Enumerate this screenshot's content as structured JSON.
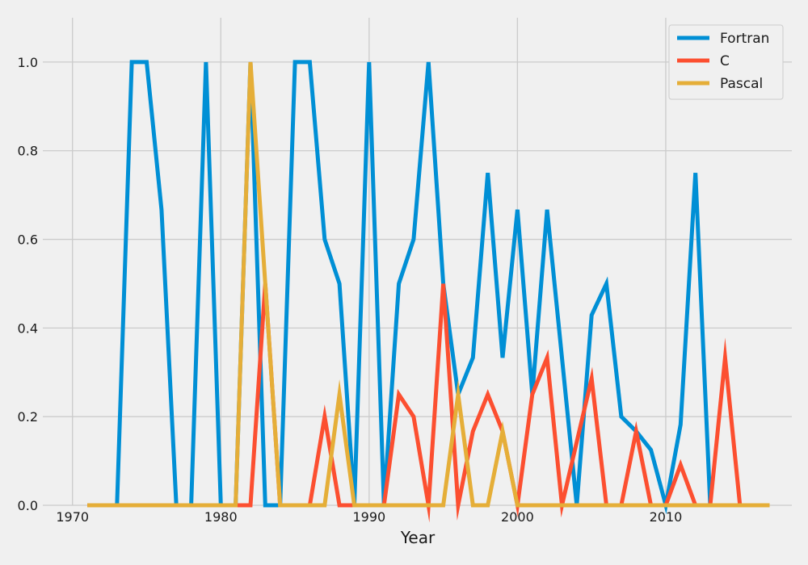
{
  "chart_data": {
    "type": "line",
    "title": "",
    "xlabel": "Year",
    "ylabel": "",
    "xlim": [
      1968,
      2018.5
    ],
    "ylim": [
      0,
      1.1
    ],
    "xticks": [
      1970,
      1980,
      1990,
      2000,
      2010
    ],
    "yticks": [
      0.0,
      0.2,
      0.4,
      0.6,
      0.8,
      1.0
    ],
    "xtick_labels": [
      "1970",
      "1980",
      "1990",
      "2000",
      "2010"
    ],
    "ytick_labels": [
      "0.0",
      "0.2",
      "0.4",
      "0.6",
      "0.8",
      "1.0"
    ],
    "grid": true,
    "legend_position": "top-right",
    "x": [
      1971,
      1972,
      1973,
      1974,
      1975,
      1976,
      1977,
      1978,
      1979,
      1980,
      1981,
      1982,
      1983,
      1984,
      1985,
      1986,
      1987,
      1988,
      1989,
      1990,
      1991,
      1992,
      1993,
      1994,
      1995,
      1996,
      1997,
      1998,
      1999,
      2000,
      2001,
      2002,
      2003,
      2004,
      2005,
      2006,
      2007,
      2008,
      2009,
      2010,
      2011,
      2012,
      2013,
      2014,
      2015,
      2016,
      2017
    ],
    "series": [
      {
        "name": "Fortran",
        "color": "#008fd5",
        "values": [
          0,
          0,
          0,
          1,
          1,
          0.667,
          0,
          0,
          1,
          0,
          0,
          1,
          0,
          0,
          1,
          1,
          0.6,
          0.5,
          0,
          1,
          0,
          0.5,
          0.6,
          1,
          0.5,
          0.25,
          0.333,
          0.75,
          0.333,
          0.667,
          0.25,
          0.667,
          0.333,
          0,
          0.429,
          0.5,
          0.2,
          0.167,
          0.125,
          0,
          0.182,
          0.75,
          0,
          0,
          0,
          0,
          0
        ]
      },
      {
        "name": "C",
        "color": "#fc4f30",
        "values": [
          0,
          0,
          0,
          0,
          0,
          0,
          0,
          0,
          0,
          0,
          0,
          0,
          0.5,
          0,
          0,
          0,
          0.2,
          0,
          0,
          0,
          0,
          0.25,
          0.2,
          0,
          0.5,
          0,
          0.167,
          0.25,
          0.167,
          0,
          0.25,
          0.333,
          0,
          0.143,
          0.286,
          0,
          0,
          0.167,
          0,
          0,
          0.091,
          0,
          0,
          0.333,
          0,
          0,
          0
        ]
      },
      {
        "name": "Pascal",
        "color": "#e5ae38",
        "values": [
          0,
          0,
          0,
          0,
          0,
          0,
          0,
          0,
          0,
          0,
          0,
          1,
          0.5,
          0,
          0,
          0,
          0,
          0.25,
          0,
          0,
          0,
          0,
          0,
          0,
          0,
          0.25,
          0,
          0,
          0.167,
          0,
          0,
          0,
          0,
          0,
          0,
          0,
          0,
          0,
          0,
          0,
          0,
          0,
          0,
          0,
          0,
          0,
          0
        ]
      }
    ]
  }
}
